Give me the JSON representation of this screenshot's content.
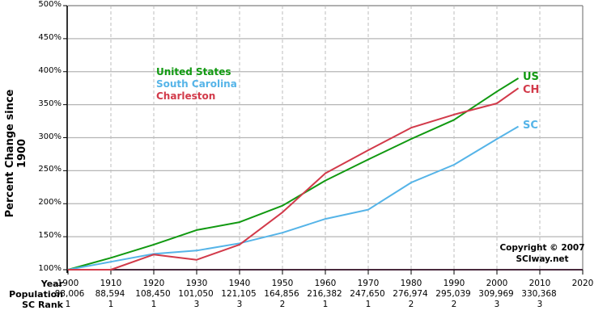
{
  "chart_data": {
    "type": "line",
    "title": "",
    "xlabel": "Year",
    "ylabel": "Percent Change since 1900",
    "ylim": [
      100,
      500
    ],
    "xlim": [
      1900,
      2020
    ],
    "yticks": [
      "100%",
      "150%",
      "200%",
      "250%",
      "300%",
      "350%",
      "400%",
      "450%",
      "500%"
    ],
    "xticks": [
      1900,
      1910,
      1920,
      1930,
      1940,
      1950,
      1960,
      1970,
      1980,
      1990,
      2000,
      2010,
      2020
    ],
    "x": [
      1900,
      1910,
      1920,
      1930,
      1940,
      1950,
      1960,
      1970,
      1980,
      1990,
      2000,
      2005
    ],
    "series": [
      {
        "name": "United States",
        "short": "US",
        "color": "#119911",
        "values": [
          100,
          118,
          138,
          160,
          172,
          197,
          235,
          267,
          298,
          327,
          370,
          390
        ]
      },
      {
        "name": "South Carolina",
        "short": "SC",
        "color": "#55B4E8",
        "values": [
          100,
          112,
          124,
          129,
          140,
          156,
          177,
          191,
          232,
          259,
          298,
          317
        ]
      },
      {
        "name": "Charleston",
        "short": "CH",
        "color": "#D23A4A",
        "values": [
          100,
          100,
          123,
          115,
          138,
          187,
          246,
          281,
          315,
          335,
          352,
          375
        ]
      }
    ],
    "grid": true,
    "legend_position": "upper-left"
  },
  "table": {
    "row_labels": {
      "year": "Year",
      "population": "Population",
      "rank": "SC Rank"
    },
    "years": [
      "1900",
      "1910",
      "1920",
      "1930",
      "1940",
      "1950",
      "1960",
      "1970",
      "1980",
      "1990",
      "2000",
      "2010",
      "2020"
    ],
    "population": [
      "88,006",
      "88,594",
      "108,450",
      "101,050",
      "121,105",
      "164,856",
      "216,382",
      "247,650",
      "276,974",
      "295,039",
      "309,969",
      "330,368",
      ""
    ],
    "rank": [
      "1",
      "1",
      "1",
      "3",
      "3",
      "2",
      "1",
      "1",
      "2",
      "2",
      "3",
      "3",
      ""
    ]
  },
  "copyright": {
    "line1": "Copyright © 2007",
    "line2": "SCIway.net"
  }
}
